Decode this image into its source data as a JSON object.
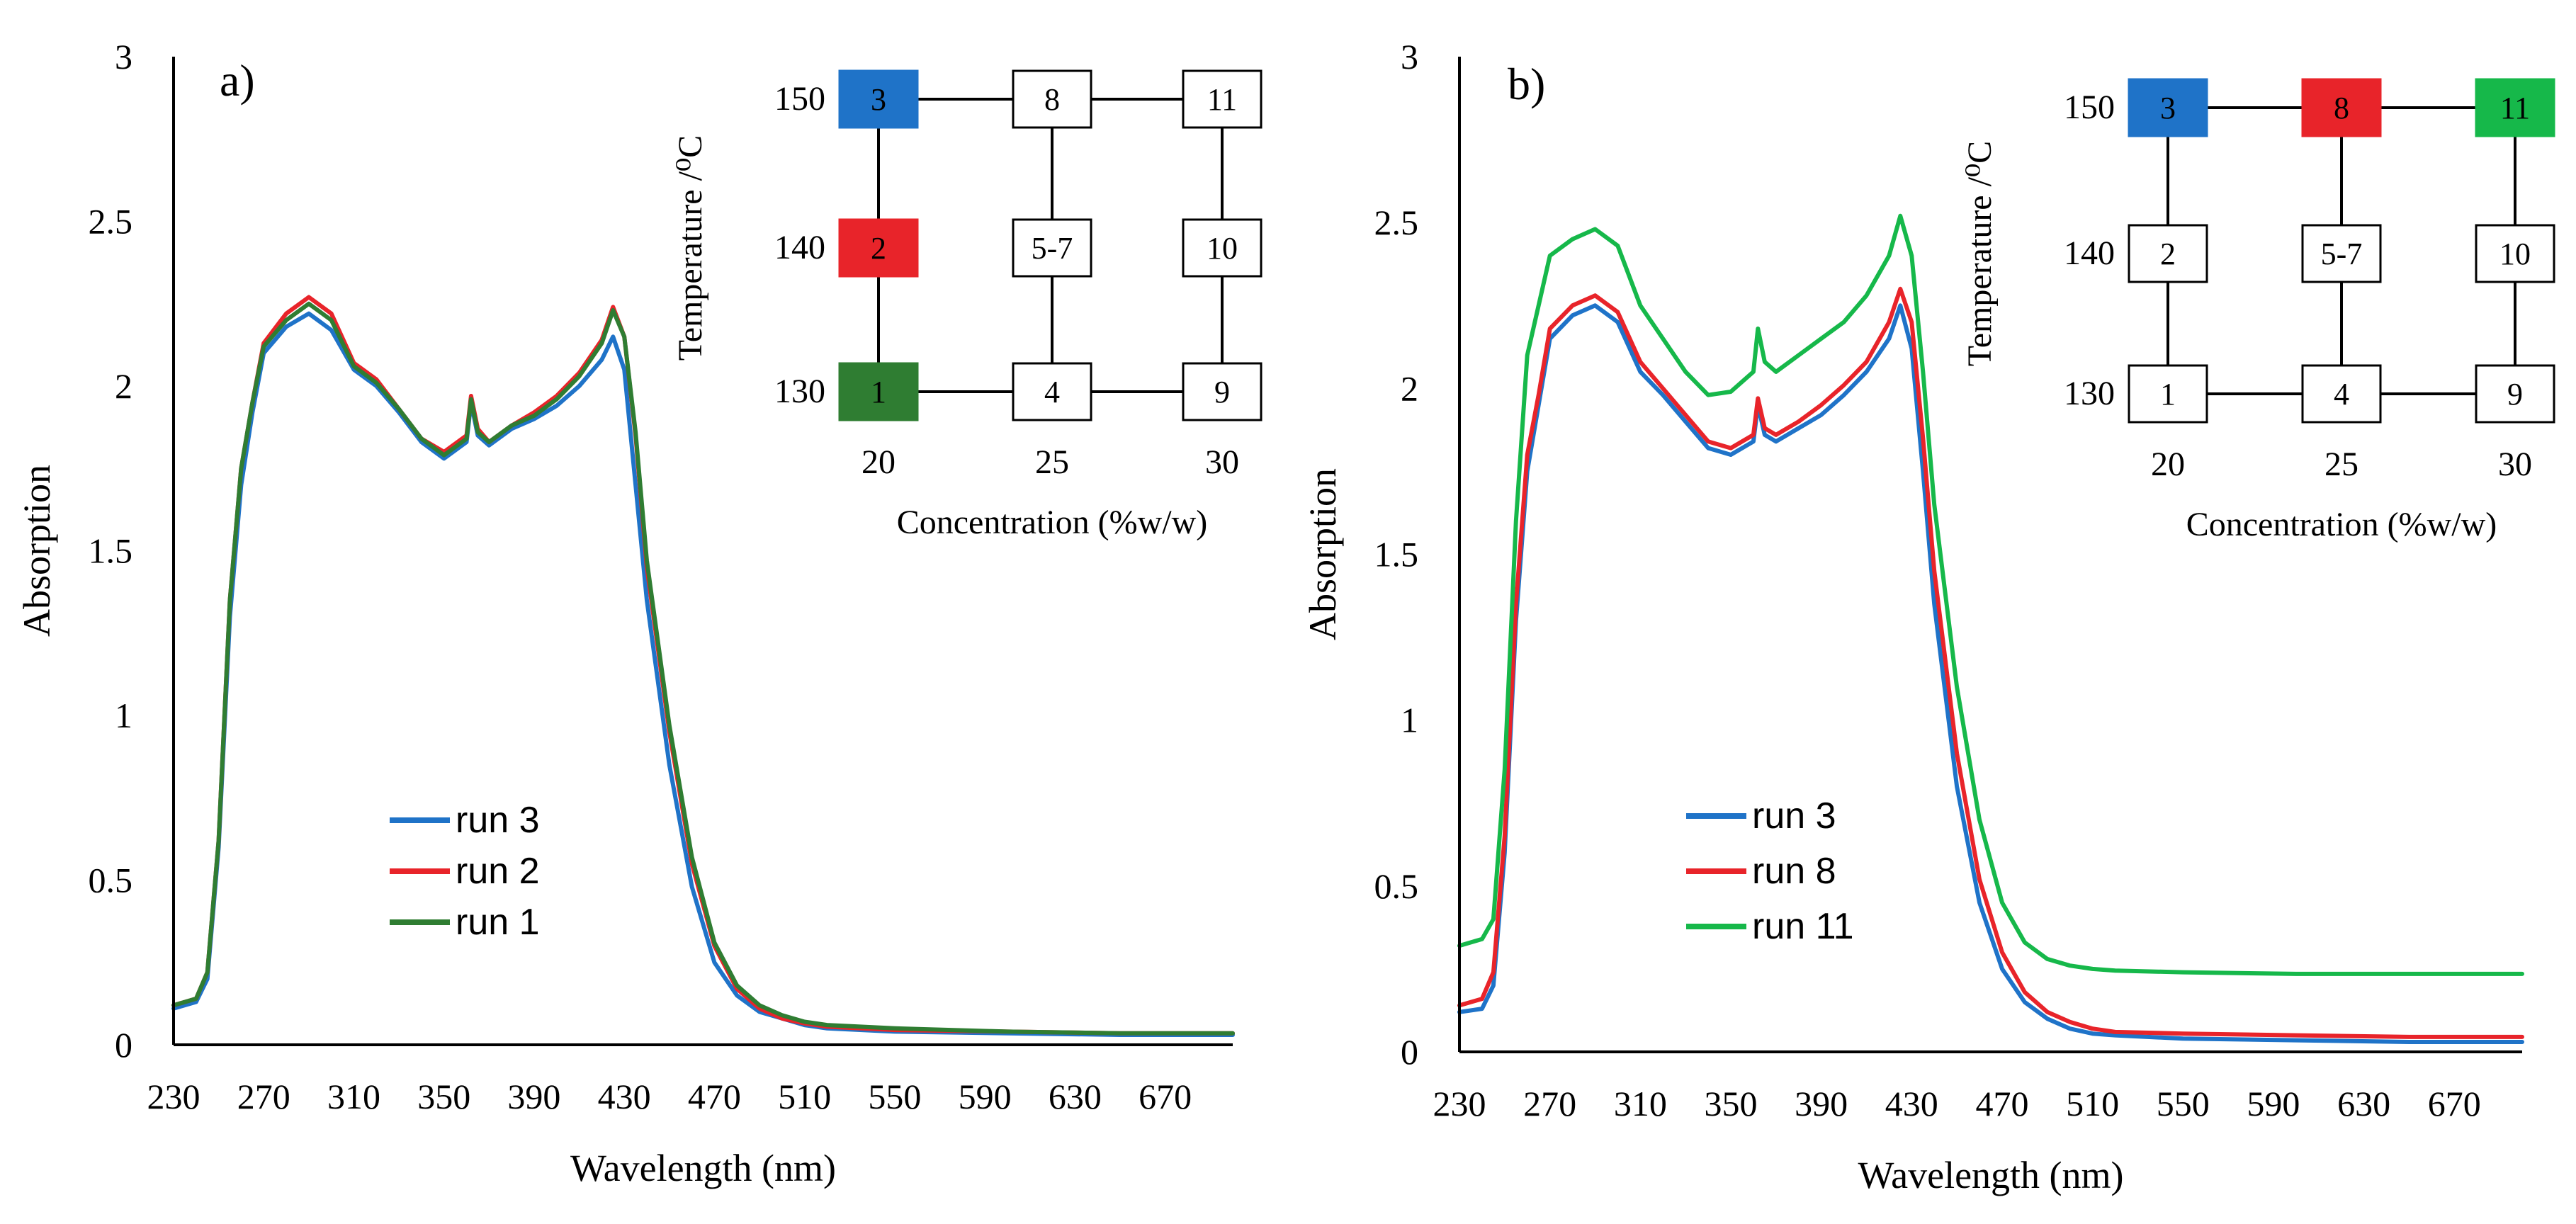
{
  "colors": {
    "blue": "#1f73c8",
    "red": "#e8242a",
    "green_dark": "#2f7d32",
    "green_light": "#16b84a",
    "axis": "#000000"
  },
  "chart_data": [
    {
      "type": "line",
      "panel_label": "a)",
      "xlabel": "Wavelength (nm)",
      "ylabel": "Absorption",
      "xlim": [
        230,
        700
      ],
      "ylim": [
        0,
        3
      ],
      "x_ticks": [
        "230",
        "270",
        "310",
        "350",
        "390",
        "430",
        "470",
        "510",
        "550",
        "590",
        "630",
        "670"
      ],
      "y_ticks": [
        "0",
        "0.5",
        "1",
        "1.5",
        "2",
        "2.5",
        "3"
      ],
      "legend": [
        "run 3",
        "run 2",
        "run 1"
      ],
      "series": [
        {
          "name": "run 3",
          "color": "#1f73c8",
          "x": [
            230,
            240,
            245,
            250,
            255,
            260,
            265,
            270,
            280,
            290,
            300,
            310,
            320,
            330,
            340,
            350,
            360,
            362,
            365,
            370,
            380,
            390,
            400,
            410,
            420,
            425,
            430,
            435,
            440,
            450,
            460,
            470,
            480,
            490,
            500,
            510,
            520,
            550,
            600,
            650,
            700
          ],
          "y": [
            0.11,
            0.13,
            0.2,
            0.6,
            1.3,
            1.7,
            1.92,
            2.1,
            2.18,
            2.22,
            2.17,
            2.05,
            2.0,
            1.92,
            1.83,
            1.78,
            1.83,
            1.95,
            1.85,
            1.82,
            1.87,
            1.9,
            1.94,
            2.0,
            2.08,
            2.15,
            2.05,
            1.7,
            1.35,
            0.85,
            0.48,
            0.25,
            0.15,
            0.1,
            0.08,
            0.06,
            0.05,
            0.04,
            0.035,
            0.03,
            0.03
          ]
        },
        {
          "name": "run 2",
          "color": "#e8242a",
          "x": [
            230,
            240,
            245,
            250,
            255,
            260,
            265,
            270,
            280,
            290,
            300,
            310,
            320,
            330,
            340,
            350,
            360,
            362,
            365,
            370,
            380,
            390,
            400,
            410,
            420,
            425,
            430,
            435,
            440,
            450,
            460,
            470,
            480,
            490,
            500,
            510,
            520,
            550,
            600,
            650,
            700
          ],
          "y": [
            0.12,
            0.14,
            0.22,
            0.62,
            1.35,
            1.75,
            1.95,
            2.13,
            2.22,
            2.27,
            2.22,
            2.07,
            2.02,
            1.93,
            1.84,
            1.8,
            1.85,
            1.97,
            1.87,
            1.83,
            1.88,
            1.92,
            1.97,
            2.04,
            2.14,
            2.24,
            2.15,
            1.85,
            1.45,
            0.95,
            0.55,
            0.3,
            0.17,
            0.11,
            0.08,
            0.065,
            0.055,
            0.045,
            0.04,
            0.035,
            0.035
          ]
        },
        {
          "name": "run 1",
          "color": "#2f7d32",
          "x": [
            230,
            240,
            245,
            250,
            255,
            260,
            265,
            270,
            280,
            290,
            300,
            310,
            320,
            330,
            340,
            350,
            360,
            362,
            365,
            370,
            380,
            390,
            400,
            410,
            420,
            425,
            430,
            435,
            440,
            450,
            460,
            470,
            480,
            490,
            500,
            510,
            520,
            550,
            600,
            650,
            700
          ],
          "y": [
            0.12,
            0.14,
            0.22,
            0.62,
            1.35,
            1.75,
            1.95,
            2.12,
            2.2,
            2.25,
            2.2,
            2.06,
            2.01,
            1.93,
            1.84,
            1.79,
            1.84,
            1.96,
            1.86,
            1.83,
            1.88,
            1.91,
            1.96,
            2.03,
            2.13,
            2.23,
            2.15,
            1.86,
            1.47,
            0.97,
            0.57,
            0.31,
            0.18,
            0.12,
            0.09,
            0.07,
            0.06,
            0.05,
            0.04,
            0.035,
            0.035
          ]
        }
      ],
      "inset": {
        "ylabel": "Temperature /⁰C",
        "xlabel": "Concentration (%w/w)",
        "x_ticks": [
          "20",
          "25",
          "30"
        ],
        "y_ticks": [
          "150",
          "140",
          "130"
        ],
        "cells": [
          {
            "label": "3",
            "col": 0,
            "row": 0,
            "fill": "#1f73c8"
          },
          {
            "label": "8",
            "col": 1,
            "row": 0,
            "fill": "#ffffff"
          },
          {
            "label": "11",
            "col": 2,
            "row": 0,
            "fill": "#ffffff"
          },
          {
            "label": "2",
            "col": 0,
            "row": 1,
            "fill": "#e8242a"
          },
          {
            "label": "5-7",
            "col": 1,
            "row": 1,
            "fill": "#ffffff"
          },
          {
            "label": "10",
            "col": 2,
            "row": 1,
            "fill": "#ffffff"
          },
          {
            "label": "1",
            "col": 0,
            "row": 2,
            "fill": "#2f7d32"
          },
          {
            "label": "4",
            "col": 1,
            "row": 2,
            "fill": "#ffffff"
          },
          {
            "label": "9",
            "col": 2,
            "row": 2,
            "fill": "#ffffff"
          }
        ]
      }
    },
    {
      "type": "line",
      "panel_label": "b)",
      "xlabel": "Wavelength (nm)",
      "ylabel": "Absorption",
      "xlim": [
        230,
        700
      ],
      "ylim": [
        0,
        3
      ],
      "x_ticks": [
        "230",
        "270",
        "310",
        "350",
        "390",
        "430",
        "470",
        "510",
        "550",
        "590",
        "630",
        "670"
      ],
      "y_ticks": [
        "0",
        "0.5",
        "1",
        "1.5",
        "2",
        "2.5",
        "3"
      ],
      "legend": [
        "run 3",
        "run 8",
        "run 11"
      ],
      "series": [
        {
          "name": "run 3",
          "color": "#1f73c8",
          "x": [
            230,
            240,
            245,
            250,
            255,
            260,
            265,
            270,
            280,
            290,
            300,
            310,
            320,
            330,
            340,
            350,
            360,
            362,
            365,
            370,
            380,
            390,
            400,
            410,
            420,
            425,
            430,
            435,
            440,
            450,
            460,
            470,
            480,
            490,
            500,
            510,
            520,
            550,
            600,
            650,
            700
          ],
          "y": [
            0.12,
            0.13,
            0.2,
            0.6,
            1.3,
            1.75,
            1.95,
            2.15,
            2.22,
            2.25,
            2.2,
            2.05,
            1.98,
            1.9,
            1.82,
            1.8,
            1.84,
            1.95,
            1.86,
            1.84,
            1.88,
            1.92,
            1.98,
            2.05,
            2.15,
            2.25,
            2.12,
            1.75,
            1.35,
            0.8,
            0.45,
            0.25,
            0.15,
            0.1,
            0.07,
            0.055,
            0.05,
            0.04,
            0.035,
            0.03,
            0.03
          ]
        },
        {
          "name": "run 8",
          "color": "#e8242a",
          "x": [
            230,
            240,
            245,
            250,
            255,
            260,
            265,
            270,
            280,
            290,
            300,
            310,
            320,
            330,
            340,
            350,
            360,
            362,
            365,
            370,
            380,
            390,
            400,
            410,
            420,
            425,
            430,
            435,
            440,
            450,
            460,
            470,
            480,
            490,
            500,
            510,
            520,
            550,
            600,
            650,
            700
          ],
          "y": [
            0.14,
            0.16,
            0.24,
            0.65,
            1.35,
            1.8,
            1.98,
            2.18,
            2.25,
            2.28,
            2.23,
            2.08,
            2.0,
            1.92,
            1.84,
            1.82,
            1.86,
            1.97,
            1.88,
            1.86,
            1.9,
            1.95,
            2.01,
            2.08,
            2.2,
            2.3,
            2.2,
            1.85,
            1.45,
            0.9,
            0.52,
            0.3,
            0.18,
            0.12,
            0.09,
            0.07,
            0.06,
            0.055,
            0.05,
            0.045,
            0.045
          ]
        },
        {
          "name": "run 11",
          "color": "#16b84a",
          "x": [
            230,
            240,
            245,
            250,
            255,
            260,
            265,
            270,
            280,
            290,
            300,
            310,
            320,
            330,
            340,
            350,
            360,
            362,
            365,
            370,
            380,
            390,
            400,
            410,
            420,
            425,
            430,
            435,
            440,
            450,
            460,
            470,
            480,
            490,
            500,
            510,
            520,
            550,
            600,
            650,
            700
          ],
          "y": [
            0.32,
            0.34,
            0.4,
            0.85,
            1.6,
            2.1,
            2.25,
            2.4,
            2.45,
            2.48,
            2.43,
            2.25,
            2.15,
            2.05,
            1.98,
            1.99,
            2.05,
            2.18,
            2.08,
            2.05,
            2.1,
            2.15,
            2.2,
            2.28,
            2.4,
            2.52,
            2.4,
            2.05,
            1.65,
            1.1,
            0.7,
            0.45,
            0.33,
            0.28,
            0.26,
            0.25,
            0.245,
            0.24,
            0.235,
            0.235,
            0.235
          ]
        }
      ],
      "inset": {
        "ylabel": "Temperature /⁰C",
        "xlabel": "Concentration (%w/w)",
        "x_ticks": [
          "20",
          "25",
          "30"
        ],
        "y_ticks": [
          "150",
          "140",
          "130"
        ],
        "cells": [
          {
            "label": "3",
            "col": 0,
            "row": 0,
            "fill": "#1f73c8"
          },
          {
            "label": "8",
            "col": 1,
            "row": 0,
            "fill": "#e8242a"
          },
          {
            "label": "11",
            "col": 2,
            "row": 0,
            "fill": "#16b84a"
          },
          {
            "label": "2",
            "col": 0,
            "row": 1,
            "fill": "#ffffff"
          },
          {
            "label": "5-7",
            "col": 1,
            "row": 1,
            "fill": "#ffffff"
          },
          {
            "label": "10",
            "col": 2,
            "row": 1,
            "fill": "#ffffff"
          },
          {
            "label": "1",
            "col": 0,
            "row": 2,
            "fill": "#ffffff"
          },
          {
            "label": "4",
            "col": 1,
            "row": 2,
            "fill": "#ffffff"
          },
          {
            "label": "9",
            "col": 2,
            "row": 2,
            "fill": "#ffffff"
          }
        ]
      }
    }
  ]
}
